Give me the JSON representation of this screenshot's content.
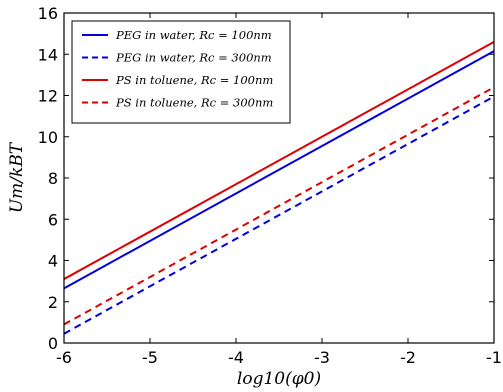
{
  "chart_data": {
    "type": "line",
    "xlabel": "log10(φ0)",
    "ylabel": "Um/kBT",
    "xlim": [
      -6,
      -1
    ],
    "ylim": [
      0,
      16
    ],
    "xticks": [
      -6,
      -5,
      -4,
      -3,
      -2,
      -1
    ],
    "yticks": [
      0,
      2,
      4,
      6,
      8,
      10,
      12,
      14,
      16
    ],
    "grid": false,
    "legend_position": "top-left",
    "series": [
      {
        "name": "PEG in water, Rc = 100nm",
        "color": "#0000dd",
        "dash": "solid",
        "x": [
          -6,
          -1
        ],
        "y": [
          2.65,
          14.15
        ]
      },
      {
        "name": "PEG in water, Rc = 300nm",
        "color": "#0000dd",
        "dash": "dashed",
        "x": [
          -6,
          -1
        ],
        "y": [
          0.45,
          11.95
        ]
      },
      {
        "name": "PS in toluene, Rc = 100nm",
        "color": "#dd0000",
        "dash": "solid",
        "x": [
          -6,
          -1
        ],
        "y": [
          3.1,
          14.6
        ]
      },
      {
        "name": "PS in toluene, Rc = 300nm",
        "color": "#dd0000",
        "dash": "dashed",
        "x": [
          -6,
          -1
        ],
        "y": [
          0.9,
          12.4
        ]
      }
    ]
  }
}
